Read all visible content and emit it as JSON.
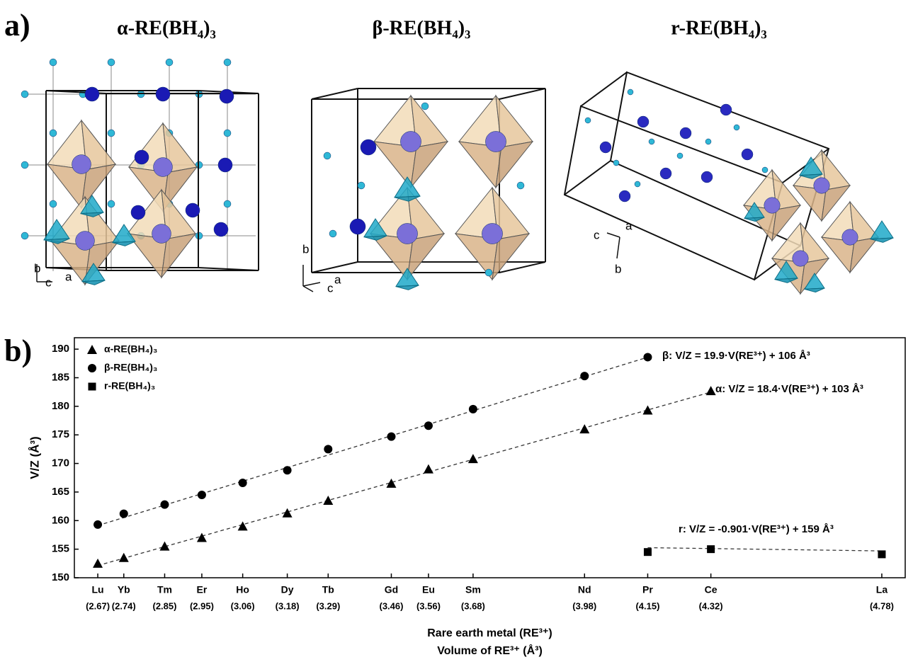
{
  "panel_a": {
    "label": "a)",
    "structures": [
      {
        "title": "α-RE(BH₄)₃",
        "axes": [
          "b",
          "c",
          "a"
        ]
      },
      {
        "title": "β-RE(BH₄)₃",
        "axes": [
          "b",
          "c",
          "a"
        ]
      },
      {
        "title": "r-RE(BH₄)₃",
        "axes": [
          "c",
          "a",
          "b"
        ]
      }
    ]
  },
  "chart_data": {
    "type": "scatter",
    "panel_label": "b)",
    "ylabel": "V/Z (Å³)",
    "xlabel": "Rare earth metal (RE³⁺)",
    "xlabel2": "Volume of RE³⁺ (Å³)",
    "categories": [
      "Lu",
      "Yb",
      "Tm",
      "Er",
      "Ho",
      "Dy",
      "Tb",
      "Gd",
      "Eu",
      "Sm",
      "Nd",
      "Pr",
      "Ce",
      "La"
    ],
    "x": [
      2.67,
      2.74,
      2.85,
      2.95,
      3.06,
      3.18,
      3.29,
      3.46,
      3.56,
      3.68,
      3.98,
      4.15,
      4.32,
      4.78
    ],
    "xlim": [
      2.607,
      4.843
    ],
    "xticks": [
      {
        "value": 2.67,
        "label": "(2.67)"
      },
      {
        "value": 2.74,
        "label": "(2.74)"
      },
      {
        "value": 2.85,
        "label": "(2.85)"
      },
      {
        "value": 2.95,
        "label": "(2.95)"
      },
      {
        "value": 3.06,
        "label": "(3.06)"
      },
      {
        "value": 3.18,
        "label": "(3.18)"
      },
      {
        "value": 3.29,
        "label": "(3.29)"
      },
      {
        "value": 3.46,
        "label": "(3.46)"
      },
      {
        "value": 3.56,
        "label": "(3.56)"
      },
      {
        "value": 3.68,
        "label": "(3.68)"
      },
      {
        "value": 3.98,
        "label": "(3.98)"
      },
      {
        "value": 4.15,
        "label": "(4.15)"
      },
      {
        "value": 4.32,
        "label": "(4.32)"
      },
      {
        "value": 4.78,
        "label": "(4.78)"
      }
    ],
    "ylim": [
      150,
      192
    ],
    "yticks": [
      150,
      155,
      160,
      165,
      170,
      175,
      180,
      185,
      190
    ],
    "legend": "upper left",
    "series": [
      {
        "name": "α-RE(BH₄)₃",
        "marker": "triangle",
        "color": "#000000",
        "values": [
          152.5,
          153.5,
          155.5,
          157,
          159,
          161.3,
          163.5,
          166.5,
          169,
          170.8,
          176,
          179.3,
          182.7,
          null
        ],
        "fit": {
          "slope": 18.4,
          "intercept": 103,
          "label": "α: V/Z = 18.4·V(RE³⁺) + 103 Å³"
        }
      },
      {
        "name": "β-RE(BH₄)₃",
        "marker": "circle",
        "color": "#000000",
        "values": [
          159.3,
          161.2,
          162.8,
          164.5,
          166.6,
          168.8,
          172.5,
          174.7,
          176.6,
          179.5,
          185.3,
          188.6,
          null,
          null
        ],
        "fit": {
          "slope": 19.9,
          "intercept": 106,
          "label": "β: V/Z = 19.9·V(RE³⁺) + 106 Å³"
        }
      },
      {
        "name": "r-RE(BH₄)₃",
        "marker": "square",
        "color": "#000000",
        "values": [
          null,
          null,
          null,
          null,
          null,
          null,
          null,
          null,
          null,
          null,
          null,
          154.5,
          155,
          154.1
        ],
        "fit": {
          "slope": -0.901,
          "intercept": 159,
          "label": "r: V/Z = -0.901·V(RE³⁺) + 159 Å³"
        }
      }
    ]
  }
}
